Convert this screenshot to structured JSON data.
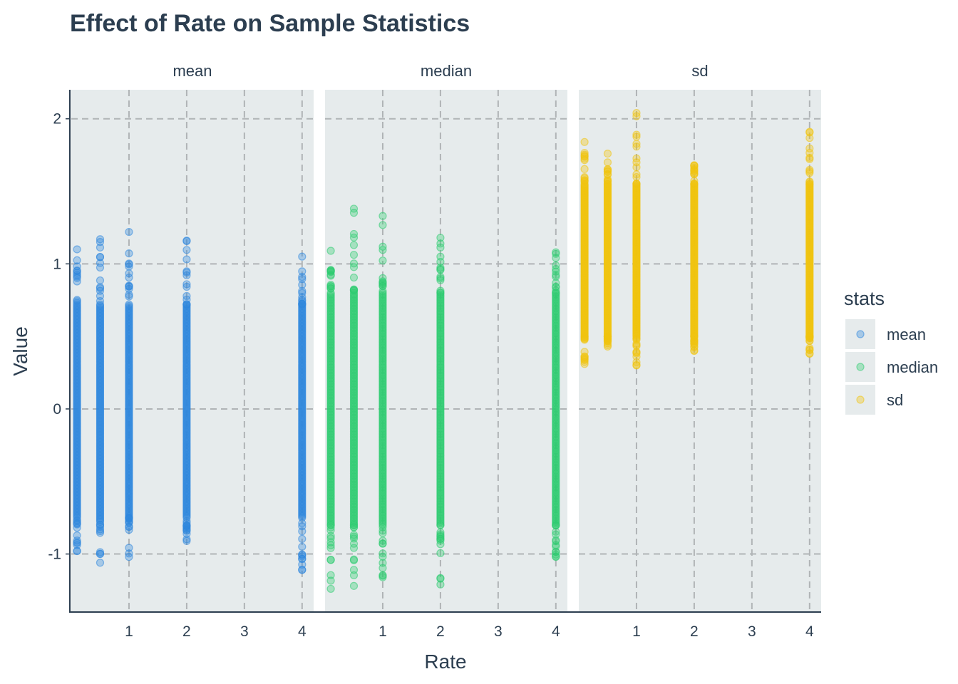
{
  "chart_data": {
    "type": "scatter",
    "title": "Effect of Rate on Sample Statistics",
    "xlabel": "Rate",
    "ylabel": "Value",
    "xlim": [
      0,
      4.2
    ],
    "ylim": [
      -1.4,
      2.2
    ],
    "x_ticks": [
      1,
      2,
      3,
      4
    ],
    "x_tick_labels": [
      "1",
      "2",
      "3",
      "4"
    ],
    "y_ticks": [
      -1,
      0,
      1,
      2
    ],
    "y_tick_labels": [
      "-1",
      "0",
      "1",
      "2"
    ],
    "rates": [
      0.1,
      0.5,
      1,
      2,
      4
    ],
    "grid": true,
    "legend": {
      "title": "stats",
      "placement": "right",
      "entries": [
        "mean",
        "median",
        "sd"
      ]
    },
    "panel_background": "#e6ebec",
    "panels": [
      {
        "name": "mean",
        "color": "#2e86de",
        "ranges": [
          {
            "x": 0.1,
            "min": -0.98,
            "max": 1.1
          },
          {
            "x": 0.5,
            "min": -1.06,
            "max": 1.17
          },
          {
            "x": 1,
            "min": -1.02,
            "max": 1.22
          },
          {
            "x": 2,
            "min": -0.91,
            "max": 1.16
          },
          {
            "x": 4,
            "min": -1.11,
            "max": 1.05
          }
        ],
        "core": [
          {
            "x": 0.1,
            "min": -0.75,
            "max": 0.72
          },
          {
            "x": 0.5,
            "min": -0.75,
            "max": 0.72
          },
          {
            "x": 1,
            "min": -0.75,
            "max": 0.72
          },
          {
            "x": 2,
            "min": -0.75,
            "max": 0.72
          },
          {
            "x": 4,
            "min": -0.75,
            "max": 0.72
          }
        ]
      },
      {
        "name": "median",
        "color": "#2ecc71",
        "ranges": [
          {
            "x": 0.1,
            "min": -1.24,
            "max": 1.09
          },
          {
            "x": 0.5,
            "min": -1.22,
            "max": 1.38
          },
          {
            "x": 1,
            "min": -1.16,
            "max": 1.33
          },
          {
            "x": 2,
            "min": -1.21,
            "max": 1.18
          },
          {
            "x": 4,
            "min": -1.02,
            "max": 1.08
          }
        ],
        "core": [
          {
            "x": 0.1,
            "min": -0.8,
            "max": 0.8
          },
          {
            "x": 0.5,
            "min": -0.8,
            "max": 0.8
          },
          {
            "x": 1,
            "min": -0.8,
            "max": 0.8
          },
          {
            "x": 2,
            "min": -0.8,
            "max": 0.8
          },
          {
            "x": 4,
            "min": -0.8,
            "max": 0.8
          }
        ]
      },
      {
        "name": "sd",
        "color": "#f1c40f",
        "ranges": [
          {
            "x": 0.1,
            "min": 0.31,
            "max": 1.84
          },
          {
            "x": 0.5,
            "min": 0.43,
            "max": 1.76
          },
          {
            "x": 1,
            "min": 0.3,
            "max": 2.04
          },
          {
            "x": 2,
            "min": 0.4,
            "max": 1.68
          },
          {
            "x": 4,
            "min": 0.38,
            "max": 1.91
          }
        ],
        "core": [
          {
            "x": 0.1,
            "min": 0.5,
            "max": 1.55
          },
          {
            "x": 0.5,
            "min": 0.5,
            "max": 1.55
          },
          {
            "x": 1,
            "min": 0.5,
            "max": 1.55
          },
          {
            "x": 2,
            "min": 0.5,
            "max": 1.55
          },
          {
            "x": 4,
            "min": 0.5,
            "max": 1.55
          }
        ]
      }
    ]
  }
}
